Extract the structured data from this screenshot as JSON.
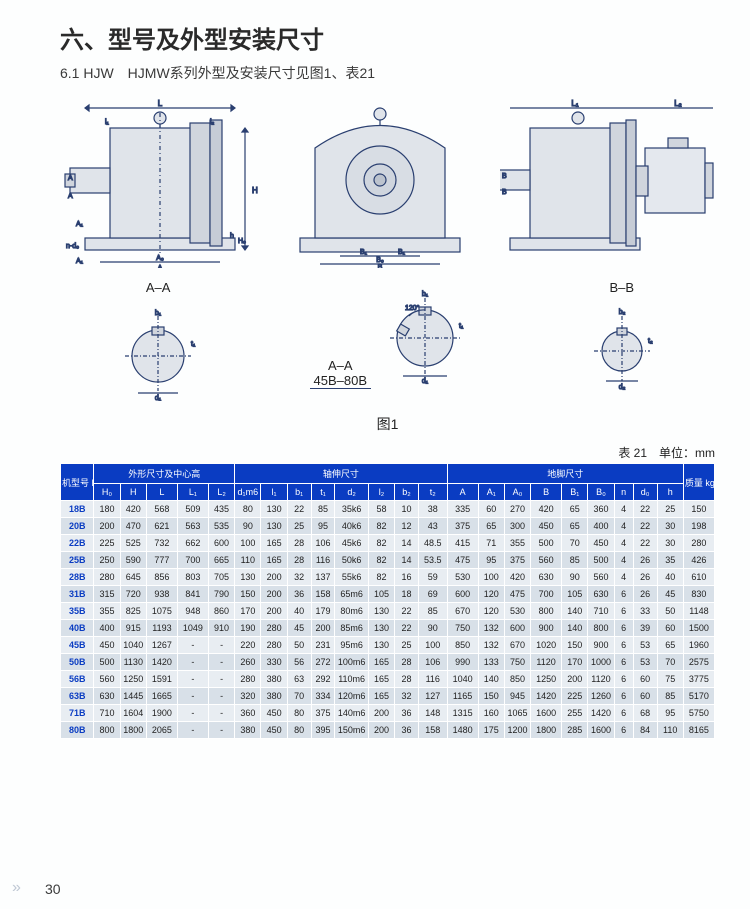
{
  "heading": "六、型号及外型安装尺寸",
  "subheading": "6.1 HJW　HJMW系列外型及安装尺寸见图1、表21",
  "section_views": {
    "a": "A–A",
    "b": "A–A\n45B–80B",
    "bb": "B–B"
  },
  "figure_label": "图1",
  "table_caption": "表 21　单位：mm",
  "page_number": "30",
  "table": {
    "header_group1": "机型号 HJW HJMW",
    "header_group2": "外形尺寸及中心高",
    "header_group3": "轴伸尺寸",
    "header_group4": "地脚尺寸",
    "header_group5": "质量 kg",
    "columns": [
      "H₀",
      "H",
      "L",
      "L₁",
      "L₂",
      "d₁m6",
      "l₁",
      "b₁",
      "t₁",
      "d₂",
      "l₂",
      "b₂",
      "t₂",
      "A",
      "A₁",
      "A₀",
      "B",
      "B₁",
      "B₀",
      "n",
      "d₀",
      "h",
      ""
    ],
    "rows": [
      {
        "m": "18B",
        "v": [
          "180",
          "420",
          "568",
          "509",
          "435",
          "80",
          "130",
          "22",
          "85",
          "35k6",
          "58",
          "10",
          "38",
          "335",
          "60",
          "270",
          "420",
          "65",
          "360",
          "4",
          "22",
          "25",
          "150"
        ]
      },
      {
        "m": "20B",
        "v": [
          "200",
          "470",
          "621",
          "563",
          "535",
          "90",
          "130",
          "25",
          "95",
          "40k6",
          "82",
          "12",
          "43",
          "375",
          "65",
          "300",
          "450",
          "65",
          "400",
          "4",
          "22",
          "30",
          "198"
        ]
      },
      {
        "m": "22B",
        "v": [
          "225",
          "525",
          "732",
          "662",
          "600",
          "100",
          "165",
          "28",
          "106",
          "45k6",
          "82",
          "14",
          "48.5",
          "415",
          "71",
          "355",
          "500",
          "70",
          "450",
          "4",
          "22",
          "30",
          "280"
        ]
      },
      {
        "m": "25B",
        "v": [
          "250",
          "590",
          "777",
          "700",
          "665",
          "110",
          "165",
          "28",
          "116",
          "50k6",
          "82",
          "14",
          "53.5",
          "475",
          "95",
          "375",
          "560",
          "85",
          "500",
          "4",
          "26",
          "35",
          "426"
        ]
      },
      {
        "m": "28B",
        "v": [
          "280",
          "645",
          "856",
          "803",
          "705",
          "130",
          "200",
          "32",
          "137",
          "55k6",
          "82",
          "16",
          "59",
          "530",
          "100",
          "420",
          "630",
          "90",
          "560",
          "4",
          "26",
          "40",
          "610"
        ]
      },
      {
        "m": "31B",
        "v": [
          "315",
          "720",
          "938",
          "841",
          "790",
          "150",
          "200",
          "36",
          "158",
          "65m6",
          "105",
          "18",
          "69",
          "600",
          "120",
          "475",
          "700",
          "105",
          "630",
          "6",
          "26",
          "45",
          "830"
        ]
      },
      {
        "m": "35B",
        "v": [
          "355",
          "825",
          "1075",
          "948",
          "860",
          "170",
          "200",
          "40",
          "179",
          "80m6",
          "130",
          "22",
          "85",
          "670",
          "120",
          "530",
          "800",
          "140",
          "710",
          "6",
          "33",
          "50",
          "1148"
        ]
      },
      {
        "m": "40B",
        "v": [
          "400",
          "915",
          "1193",
          "1049",
          "910",
          "190",
          "280",
          "45",
          "200",
          "85m6",
          "130",
          "22",
          "90",
          "750",
          "132",
          "600",
          "900",
          "140",
          "800",
          "6",
          "39",
          "60",
          "1500"
        ]
      },
      {
        "m": "45B",
        "v": [
          "450",
          "1040",
          "1267",
          "-",
          "-",
          "220",
          "280",
          "50",
          "231",
          "95m6",
          "130",
          "25",
          "100",
          "850",
          "132",
          "670",
          "1020",
          "150",
          "900",
          "6",
          "53",
          "65",
          "1960"
        ]
      },
      {
        "m": "50B",
        "v": [
          "500",
          "1130",
          "1420",
          "-",
          "-",
          "260",
          "330",
          "56",
          "272",
          "100m6",
          "165",
          "28",
          "106",
          "990",
          "133",
          "750",
          "1120",
          "170",
          "1000",
          "6",
          "53",
          "70",
          "2575"
        ]
      },
      {
        "m": "56B",
        "v": [
          "560",
          "1250",
          "1591",
          "-",
          "-",
          "280",
          "380",
          "63",
          "292",
          "110m6",
          "165",
          "28",
          "116",
          "1040",
          "140",
          "850",
          "1250",
          "200",
          "1120",
          "6",
          "60",
          "75",
          "3775"
        ]
      },
      {
        "m": "63B",
        "v": [
          "630",
          "1445",
          "1665",
          "-",
          "-",
          "320",
          "380",
          "70",
          "334",
          "120m6",
          "165",
          "32",
          "127",
          "1165",
          "150",
          "945",
          "1420",
          "225",
          "1260",
          "6",
          "60",
          "85",
          "5170"
        ]
      },
      {
        "m": "71B",
        "v": [
          "710",
          "1604",
          "1900",
          "-",
          "-",
          "360",
          "450",
          "80",
          "375",
          "140m6",
          "200",
          "36",
          "148",
          "1315",
          "160",
          "1065",
          "1600",
          "255",
          "1420",
          "6",
          "68",
          "95",
          "5750"
        ]
      },
      {
        "m": "80B",
        "v": [
          "800",
          "1800",
          "2065",
          "-",
          "-",
          "380",
          "450",
          "80",
          "395",
          "150m6",
          "200",
          "36",
          "158",
          "1480",
          "175",
          "1200",
          "1800",
          "285",
          "1600",
          "6",
          "84",
          "110",
          "8165"
        ]
      }
    ]
  },
  "colors": {
    "diagram_stroke": "#2a3f70",
    "diagram_fill": "#e0e4ea",
    "header_bg": "#0a3cc2",
    "row_odd": "#e8edf2",
    "row_even": "#d8e0e8",
    "page_bg": "#fdfefe"
  },
  "col_widths_css": "28px 22px 22px 26px 26px 22px 22px 22px 20px 20px 28px 22px 20px 24px 26px 22px 22px 26px 22px 22px 16px 20px 22px 26px"
}
